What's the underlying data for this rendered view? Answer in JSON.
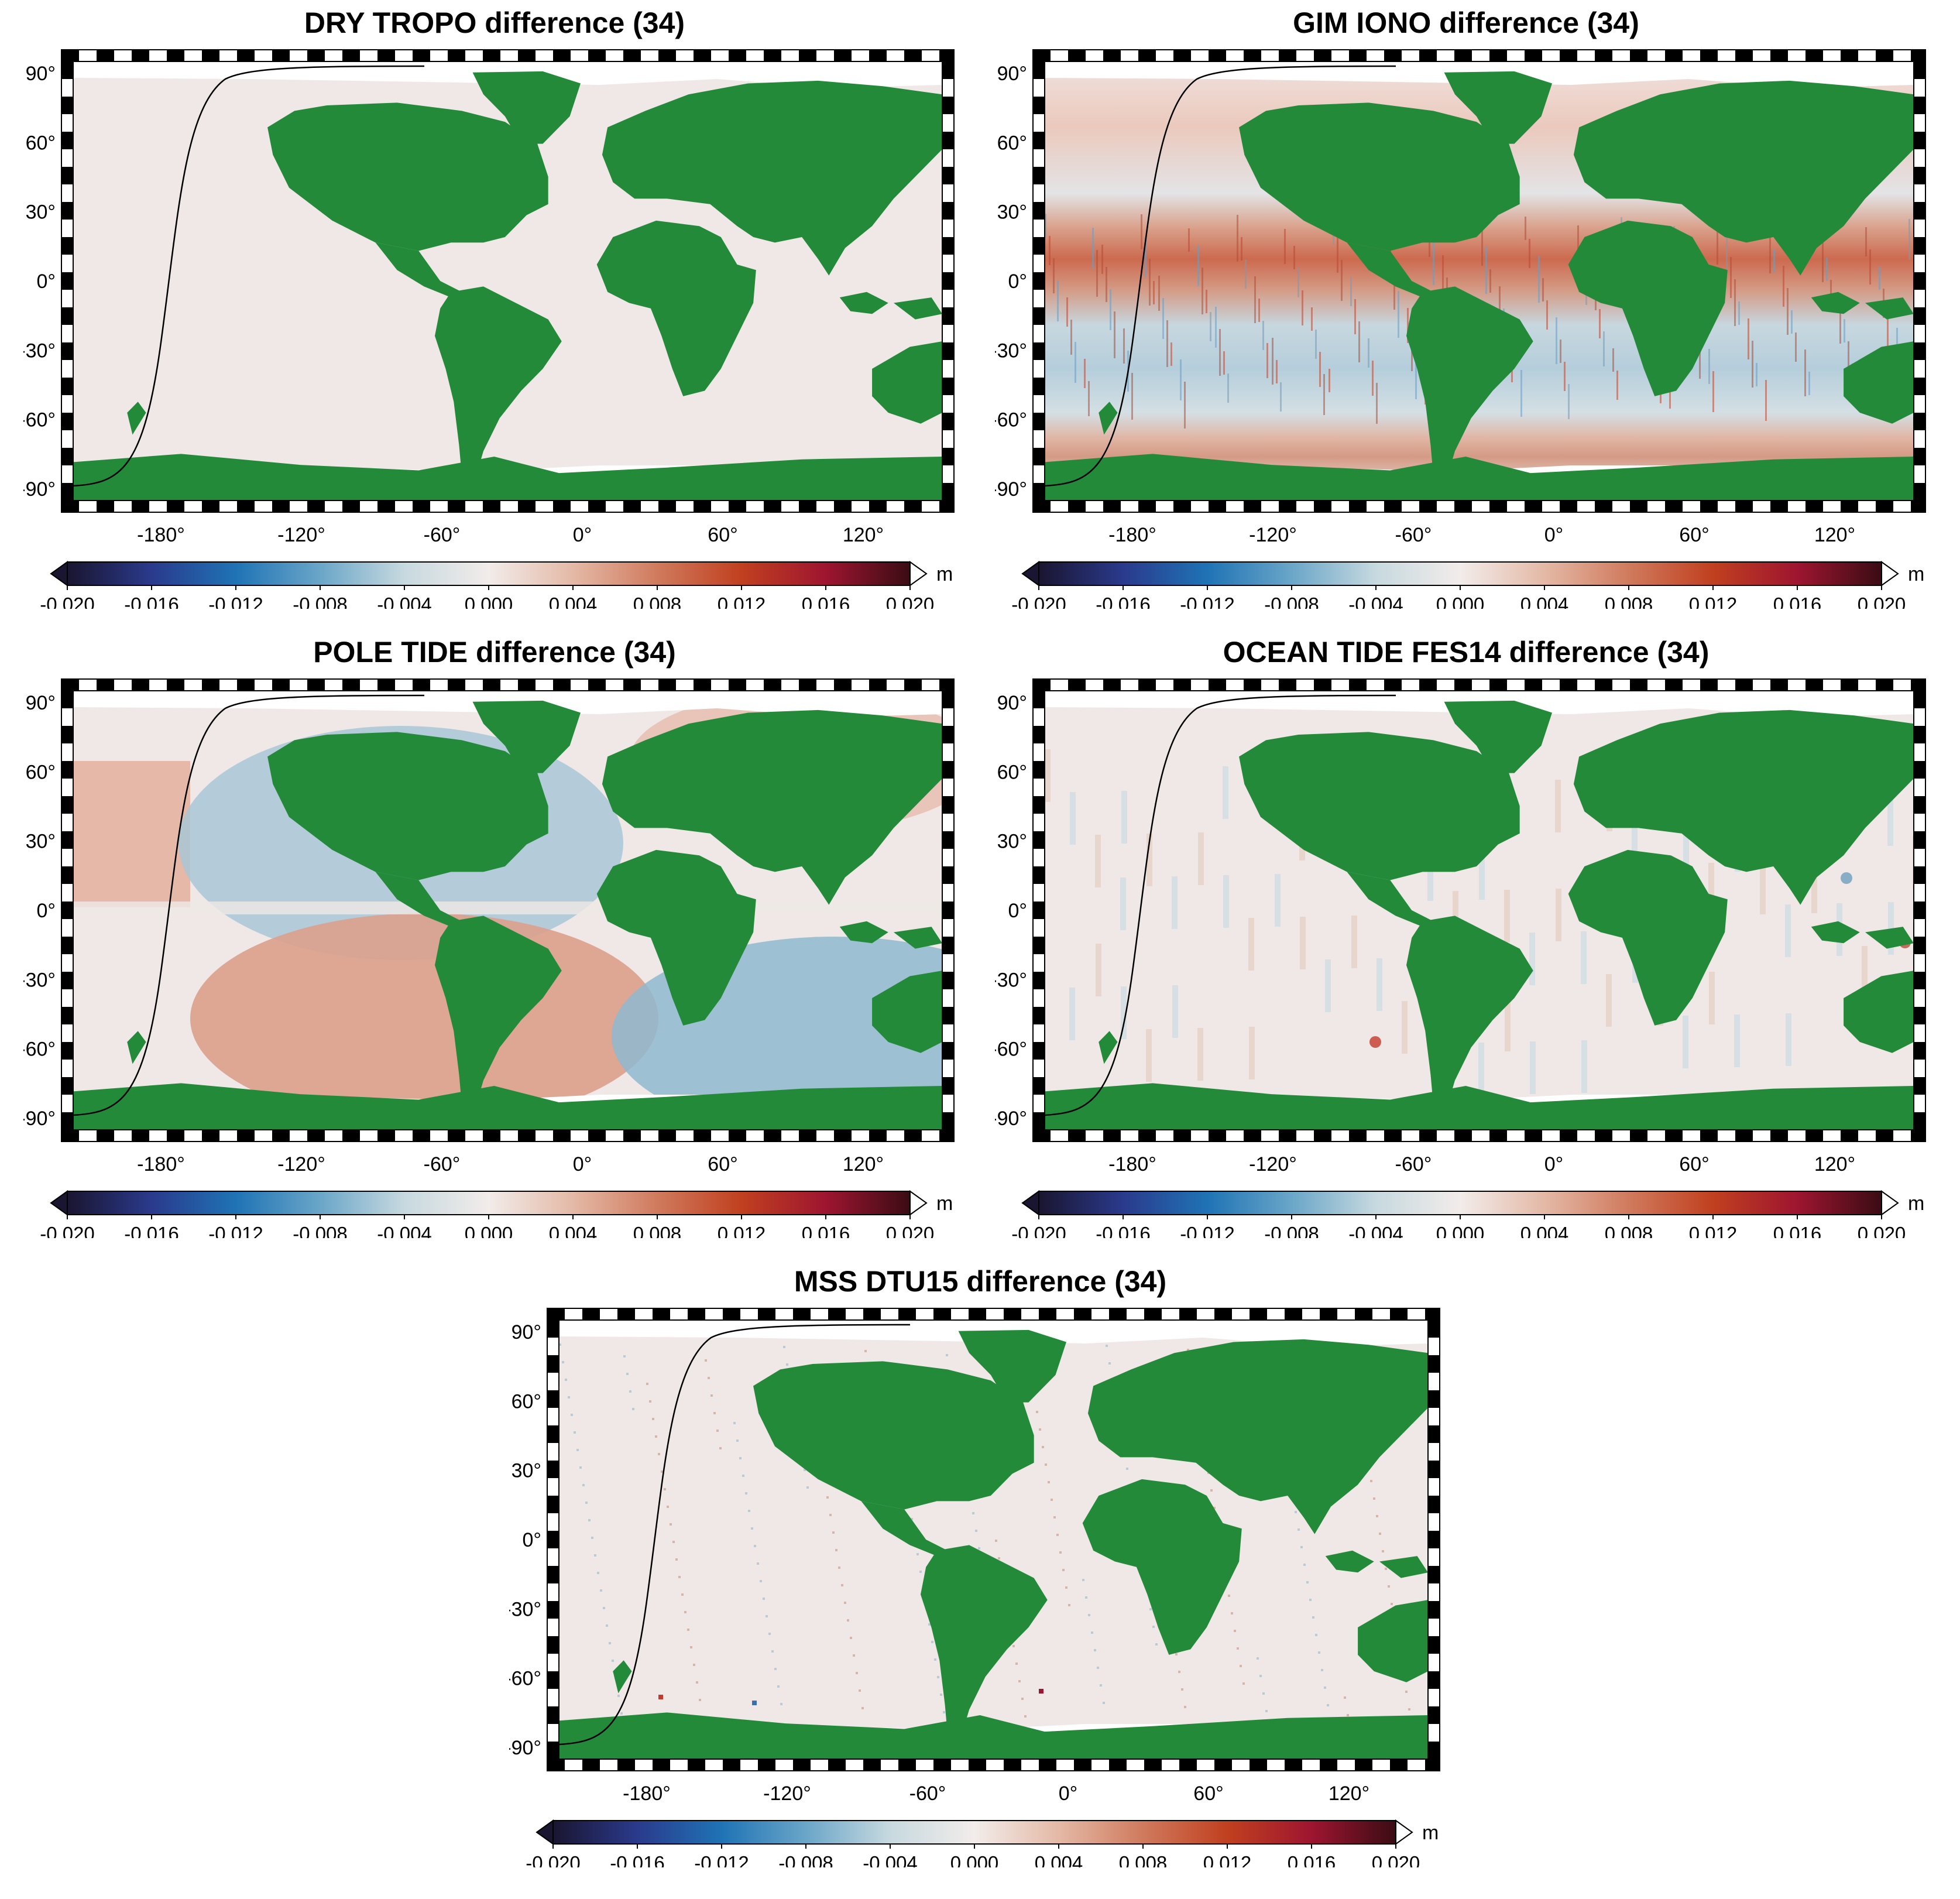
{
  "colors": {
    "land": "#238a3a",
    "ocean_zero": "#efe8e6",
    "no_data": "#ffffff",
    "track": "#000000",
    "cmap": [
      "#1a1530",
      "#2a3a8c",
      "#1f73b5",
      "#6aa6c8",
      "#c7d9df",
      "#f2ecea",
      "#e4b9a6",
      "#d07a5d",
      "#c0401f",
      "#9e1530",
      "#3a0c14"
    ]
  },
  "axes": {
    "lat_ticks": [
      "90°",
      "60°",
      "30°",
      "0°",
      "-30°",
      "-60°",
      "-90°"
    ],
    "lon_ticks": [
      "-180°",
      "-120°",
      "-60°",
      "0°",
      "60°",
      "120°"
    ]
  },
  "colorbar": {
    "unit": "m",
    "ticks": [
      "-0.020",
      "-0.016",
      "-0.012",
      "-0.008",
      "-0.004",
      "0.000",
      "0.004",
      "0.008",
      "0.012",
      "0.016",
      "0.020"
    ],
    "range": [
      -0.02,
      0.02
    ]
  },
  "panels": [
    {
      "title": "DRY TROPO difference (34)",
      "pattern": "flat"
    },
    {
      "title": "GIM IONO difference (34)",
      "pattern": "iono"
    },
    {
      "title": "POLE TIDE difference (34)",
      "pattern": "pole"
    },
    {
      "title": "OCEAN TIDE FES14 difference (34)",
      "pattern": "tide"
    },
    {
      "title": "MSS DTU15 difference (34)",
      "pattern": "mss"
    }
  ]
}
